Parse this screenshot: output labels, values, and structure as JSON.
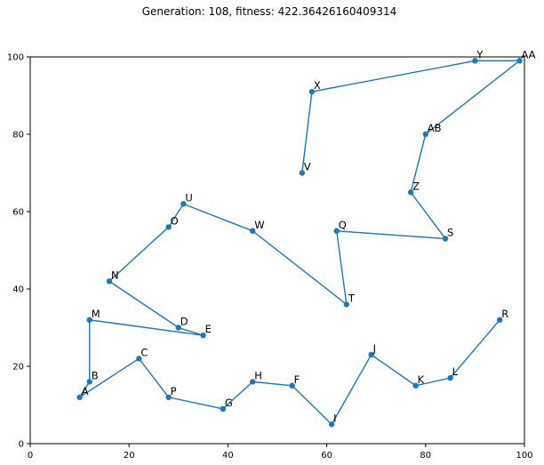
{
  "chart_data": {
    "type": "line",
    "title": "Generation: 108, fitness: 422.36426160409314",
    "xlabel": "",
    "ylabel": "",
    "xlim": [
      0,
      100
    ],
    "ylim": [
      0,
      100
    ],
    "xticks": [
      0,
      20,
      40,
      60,
      80,
      100
    ],
    "yticks": [
      0,
      20,
      40,
      60,
      80,
      100
    ],
    "grid": false,
    "colors": {
      "series": "#1f77b4"
    },
    "points": [
      {
        "label": "V",
        "x": 55,
        "y": 70
      },
      {
        "label": "X",
        "x": 57,
        "y": 91
      },
      {
        "label": "Y",
        "x": 90,
        "y": 99
      },
      {
        "label": "AA",
        "x": 99,
        "y": 99
      },
      {
        "label": "AB",
        "x": 80,
        "y": 80
      },
      {
        "label": "Z",
        "x": 77,
        "y": 65
      },
      {
        "label": "S",
        "x": 84,
        "y": 53
      },
      {
        "label": "Q",
        "x": 62,
        "y": 55
      },
      {
        "label": "T",
        "x": 64,
        "y": 36
      },
      {
        "label": "W",
        "x": 45,
        "y": 55
      },
      {
        "label": "U",
        "x": 31,
        "y": 62
      },
      {
        "label": "O",
        "x": 28,
        "y": 56
      },
      {
        "label": "N",
        "x": 16,
        "y": 42
      },
      {
        "label": "D",
        "x": 30,
        "y": 30
      },
      {
        "label": "E",
        "x": 35,
        "y": 28
      },
      {
        "label": "M",
        "x": 12,
        "y": 32
      },
      {
        "label": "B",
        "x": 12,
        "y": 16
      },
      {
        "label": "A",
        "x": 10,
        "y": 12
      },
      {
        "label": "C",
        "x": 22,
        "y": 22
      },
      {
        "label": "P",
        "x": 28,
        "y": 12
      },
      {
        "label": "G",
        "x": 39,
        "y": 9
      },
      {
        "label": "H",
        "x": 45,
        "y": 16
      },
      {
        "label": "F",
        "x": 53,
        "y": 15
      },
      {
        "label": "I",
        "x": 61,
        "y": 5
      },
      {
        "label": "J",
        "x": 69,
        "y": 23
      },
      {
        "label": "K",
        "x": 78,
        "y": 15
      },
      {
        "label": "L",
        "x": 85,
        "y": 17
      },
      {
        "label": "R",
        "x": 95,
        "y": 32
      }
    ]
  }
}
